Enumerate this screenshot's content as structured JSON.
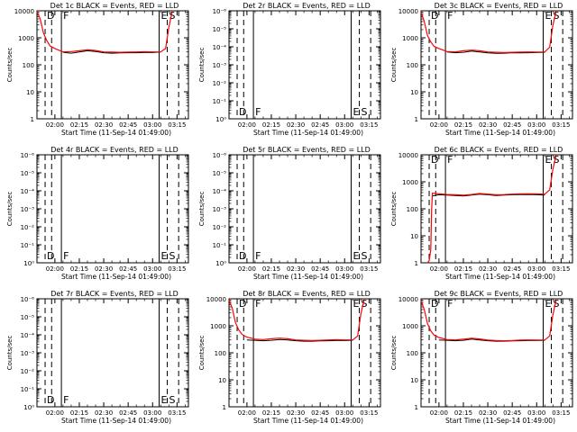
{
  "figure": {
    "xlabel": "Start Time (11-Sep-14 01:49:00)",
    "ylabel": "Counts/sec",
    "xticks": [
      "02:00",
      "02:15",
      "02:30",
      "02:45",
      "03:00",
      "03:15"
    ],
    "xtick_minutes": [
      0,
      15,
      30,
      45,
      60,
      75
    ],
    "colors": {
      "events": "#000000",
      "lld": "#ff0000",
      "axes": "#000000"
    },
    "markers": [
      {
        "label": "D",
        "minute": -6,
        "style": "dashed"
      },
      {
        "label": "",
        "minute": -2,
        "style": "dashed"
      },
      {
        "label": "F",
        "minute": 4,
        "style": "solid"
      },
      {
        "label": "E",
        "minute": 64,
        "style": "solid"
      },
      {
        "label": "S",
        "minute": 69,
        "style": "dashed"
      },
      {
        "label": "",
        "minute": 76,
        "style": "dashed"
      }
    ]
  },
  "chart_data": [
    {
      "type": "line",
      "title": "Det 1c BLACK = Events, RED = LLD",
      "log": true,
      "yticks": [
        "1",
        "10",
        "100",
        "1000",
        "10000"
      ],
      "ylim": [
        1,
        10000
      ],
      "xlim": [
        -11,
        82
      ],
      "empty": false,
      "series": [
        {
          "name": "Events",
          "color": "#000000",
          "x": [
            5,
            10,
            15,
            20,
            25,
            30,
            35,
            40,
            45,
            50,
            55,
            60,
            65
          ],
          "y": [
            290,
            270,
            300,
            330,
            310,
            280,
            270,
            275,
            280,
            280,
            285,
            285,
            300
          ]
        },
        {
          "name": "LLD",
          "color": "#ff0000",
          "x": [
            -11,
            -9,
            -7,
            -5,
            -3,
            0,
            5,
            10,
            15,
            20,
            25,
            30,
            35,
            40,
            45,
            50,
            55,
            60,
            65,
            68,
            70,
            72
          ],
          "y": [
            9000,
            5000,
            1500,
            800,
            500,
            400,
            300,
            310,
            330,
            360,
            340,
            300,
            295,
            290,
            295,
            300,
            305,
            300,
            300,
            400,
            2500,
            9000
          ]
        }
      ]
    },
    {
      "type": "line",
      "title": "Det 2r BLACK = Events, RED = LLD",
      "log": true,
      "yticks": [
        "10⁰",
        "10⁻¹",
        "10⁻²",
        "10⁻³",
        "10⁻⁴",
        "10⁻⁵",
        "10⁻⁶"
      ],
      "ylim": [
        1e-06,
        1
      ],
      "xlim": [
        -11,
        82
      ],
      "empty": true,
      "series": []
    },
    {
      "type": "line",
      "title": "Det 3c BLACK = Events, RED = LLD",
      "log": true,
      "yticks": [
        "1",
        "10",
        "100",
        "1000",
        "10000"
      ],
      "ylim": [
        1,
        10000
      ],
      "xlim": [
        -11,
        82
      ],
      "empty": false,
      "series": [
        {
          "name": "Events",
          "color": "#000000",
          "x": [
            5,
            10,
            15,
            20,
            25,
            30,
            35,
            40,
            45,
            50,
            55,
            60,
            65
          ],
          "y": [
            300,
            280,
            290,
            320,
            300,
            275,
            265,
            270,
            280,
            275,
            280,
            285,
            290
          ]
        },
        {
          "name": "LLD",
          "color": "#ff0000",
          "x": [
            -11,
            -9,
            -7,
            -5,
            -3,
            0,
            5,
            10,
            15,
            20,
            25,
            30,
            35,
            40,
            45,
            50,
            55,
            60,
            65,
            68,
            70,
            72
          ],
          "y": [
            9000,
            4000,
            1200,
            700,
            480,
            400,
            310,
            300,
            330,
            350,
            330,
            300,
            290,
            285,
            290,
            295,
            300,
            295,
            300,
            450,
            3000,
            9500
          ]
        }
      ]
    },
    {
      "type": "line",
      "title": "Det 4r BLACK = Events, RED = LLD",
      "log": true,
      "yticks": [
        "10⁰",
        "10⁻¹",
        "10⁻²",
        "10⁻³",
        "10⁻⁴",
        "10⁻⁵",
        "10⁻⁶"
      ],
      "ylim": [
        1e-06,
        1
      ],
      "xlim": [
        -11,
        82
      ],
      "empty": true,
      "series": []
    },
    {
      "type": "line",
      "title": "Det 5r BLACK = Events, RED = LLD",
      "log": true,
      "yticks": [
        "10⁰",
        "10⁻¹",
        "10⁻²",
        "10⁻³",
        "10⁻⁴",
        "10⁻⁵",
        "10⁻⁶"
      ],
      "ylim": [
        1e-06,
        1
      ],
      "xlim": [
        -11,
        82
      ],
      "empty": true,
      "series": []
    },
    {
      "type": "line",
      "title": "Det 6c BLACK = Events, RED = LLD",
      "log": true,
      "yticks": [
        "1",
        "10",
        "100",
        "1000",
        "10000"
      ],
      "ylim": [
        1,
        10000
      ],
      "xlim": [
        -11,
        82
      ],
      "empty": false,
      "series": [
        {
          "name": "Events",
          "color": "#000000",
          "x": [
            -4,
            0,
            5,
            10,
            15,
            20,
            25,
            30,
            35,
            40,
            45,
            50,
            55,
            60,
            65
          ],
          "y": [
            300,
            330,
            320,
            310,
            300,
            320,
            350,
            330,
            310,
            320,
            330,
            335,
            340,
            330,
            320
          ]
        },
        {
          "name": "LLD",
          "color": "#ff0000",
          "x": [
            -7,
            -6,
            -5,
            -4.5,
            -4,
            0,
            5,
            10,
            15,
            20,
            25,
            30,
            35,
            40,
            45,
            50,
            55,
            60,
            65,
            68,
            70,
            72
          ],
          "y": [
            1,
            1.2,
            3,
            80,
            380,
            360,
            340,
            330,
            320,
            340,
            370,
            350,
            330,
            335,
            350,
            355,
            360,
            355,
            350,
            500,
            3000,
            9500
          ]
        }
      ]
    },
    {
      "type": "line",
      "title": "Det 7r BLACK = Events, RED = LLD",
      "log": true,
      "yticks": [
        "10⁰",
        "10⁻¹",
        "10⁻²",
        "10⁻³",
        "10⁻⁴",
        "10⁻⁵",
        "10⁻⁶"
      ],
      "ylim": [
        1e-06,
        1
      ],
      "xlim": [
        -11,
        82
      ],
      "empty": true,
      "series": []
    },
    {
      "type": "line",
      "title": "Det 8r BLACK = Events, RED = LLD",
      "log": true,
      "yticks": [
        "1",
        "10",
        "100",
        "1000",
        "10000"
      ],
      "ylim": [
        1,
        10000
      ],
      "xlim": [
        -11,
        82
      ],
      "empty": false,
      "series": [
        {
          "name": "Events",
          "color": "#000000",
          "x": [
            0,
            5,
            10,
            15,
            20,
            25,
            30,
            35,
            40,
            45,
            50,
            55,
            60,
            65
          ],
          "y": [
            300,
            290,
            280,
            290,
            310,
            300,
            280,
            270,
            270,
            275,
            280,
            285,
            285,
            290
          ]
        },
        {
          "name": "LLD",
          "color": "#ff0000",
          "x": [
            -11,
            -9,
            -7,
            -5,
            -3,
            0,
            5,
            10,
            15,
            20,
            25,
            30,
            35,
            40,
            45,
            50,
            55,
            60,
            65,
            68,
            70,
            72
          ],
          "y": [
            9000,
            4500,
            1300,
            700,
            480,
            380,
            320,
            310,
            330,
            350,
            330,
            300,
            290,
            285,
            290,
            300,
            305,
            300,
            300,
            420,
            2800,
            9000
          ]
        }
      ]
    },
    {
      "type": "line",
      "title": "Det 9c BLACK = Events, RED = LLD",
      "log": true,
      "yticks": [
        "1",
        "10",
        "100",
        "1000",
        "10000"
      ],
      "ylim": [
        1,
        10000
      ],
      "xlim": [
        -11,
        82
      ],
      "empty": false,
      "series": [
        {
          "name": "Events",
          "color": "#000000",
          "x": [
            0,
            5,
            10,
            15,
            20,
            25,
            30,
            35,
            40,
            45,
            50,
            55,
            60,
            65
          ],
          "y": [
            300,
            290,
            280,
            290,
            320,
            300,
            280,
            270,
            270,
            275,
            280,
            285,
            285,
            290
          ]
        },
        {
          "name": "LLD",
          "color": "#ff0000",
          "x": [
            -11,
            -9,
            -7,
            -5,
            -3,
            0,
            5,
            10,
            15,
            20,
            25,
            30,
            35,
            40,
            45,
            50,
            55,
            60,
            65,
            68,
            70,
            72
          ],
          "y": [
            8500,
            4000,
            1200,
            650,
            450,
            370,
            310,
            300,
            320,
            345,
            325,
            295,
            285,
            280,
            285,
            295,
            300,
            295,
            300,
            420,
            2600,
            9000
          ]
        }
      ]
    }
  ]
}
